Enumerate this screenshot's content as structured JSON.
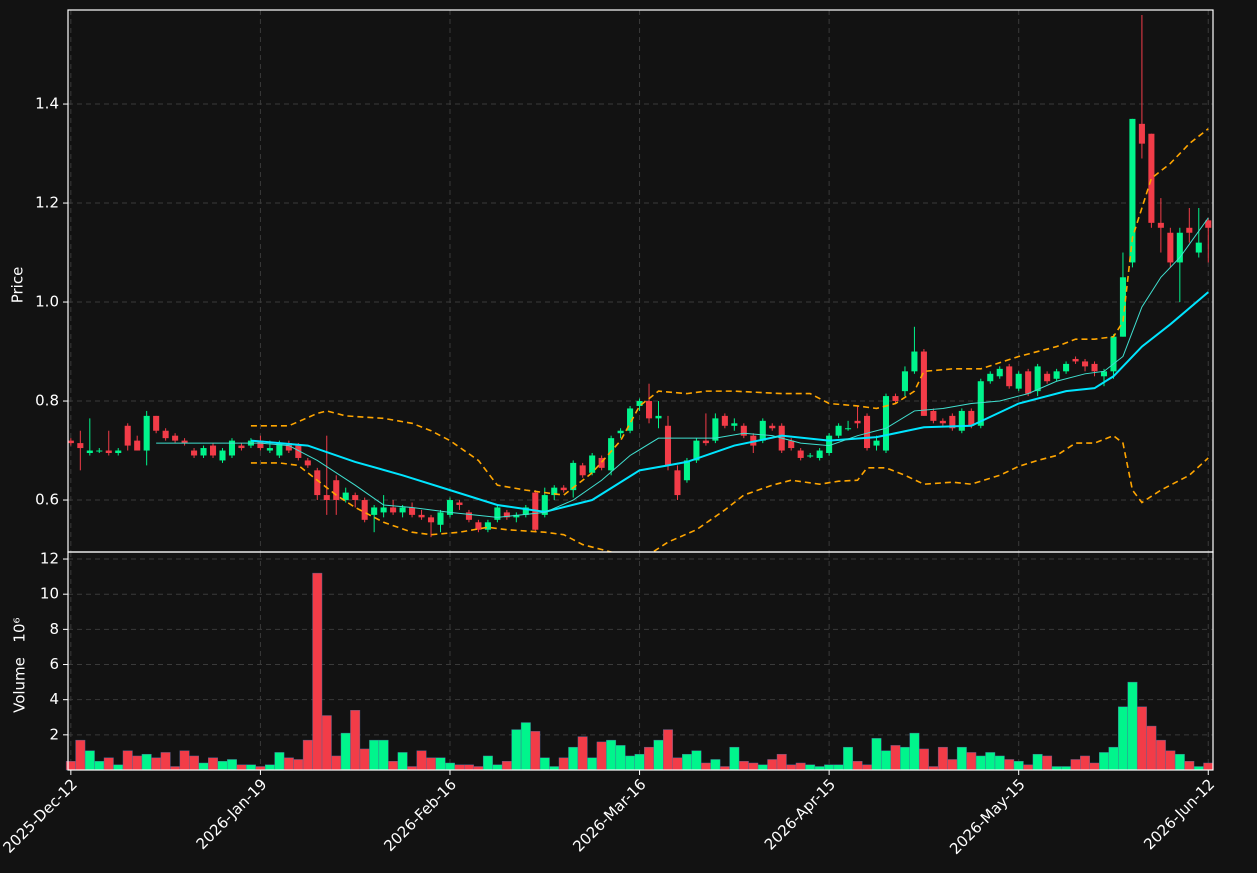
{
  "chart_data": [
    {
      "type": "candlestick",
      "ylabel": "Price",
      "ylim": [
        0.495,
        1.59
      ],
      "yticks": [
        0.6,
        0.8,
        {
          "value": 1,
          "label": "1.0"
        },
        1.2,
        1.4
      ],
      "grid": true,
      "up_color": "#00f58c",
      "down_color": "#f23c48",
      "ohlc": [
        [
          0.72,
          0.725,
          0.71,
          0.715
        ],
        [
          0.715,
          0.74,
          0.66,
          0.705
        ],
        [
          0.695,
          0.765,
          0.69,
          0.7
        ],
        [
          0.7,
          0.705,
          0.695,
          0.7
        ],
        [
          0.7,
          0.74,
          0.69,
          0.695
        ],
        [
          0.695,
          0.705,
          0.69,
          0.7
        ],
        [
          0.75,
          0.755,
          0.7,
          0.71
        ],
        [
          0.72,
          0.73,
          0.7,
          0.7
        ],
        [
          0.7,
          0.78,
          0.67,
          0.77
        ],
        [
          0.77,
          0.77,
          0.735,
          0.74
        ],
        [
          0.74,
          0.745,
          0.72,
          0.725
        ],
        [
          0.73,
          0.735,
          0.715,
          0.72
        ],
        [
          0.72,
          0.725,
          0.71,
          0.715
        ],
        [
          0.7,
          0.705,
          0.685,
          0.69
        ],
        [
          0.69,
          0.71,
          0.685,
          0.705
        ],
        [
          0.71,
          0.715,
          0.685,
          0.69
        ],
        [
          0.68,
          0.705,
          0.675,
          0.7
        ],
        [
          0.69,
          0.725,
          0.685,
          0.72
        ],
        [
          0.71,
          0.715,
          0.7,
          0.705
        ],
        [
          0.71,
          0.725,
          0.705,
          0.72
        ],
        [
          0.72,
          0.73,
          0.7,
          0.705
        ],
        [
          0.7,
          0.72,
          0.695,
          0.705
        ],
        [
          0.69,
          0.72,
          0.685,
          0.715
        ],
        [
          0.715,
          0.72,
          0.695,
          0.7
        ],
        [
          0.71,
          0.715,
          0.68,
          0.685
        ],
        [
          0.68,
          0.685,
          0.665,
          0.67
        ],
        [
          0.66,
          0.665,
          0.6,
          0.61
        ],
        [
          0.61,
          0.73,
          0.57,
          0.6
        ],
        [
          0.64,
          0.65,
          0.57,
          0.6
        ],
        [
          0.6,
          0.625,
          0.595,
          0.615
        ],
        [
          0.61,
          0.615,
          0.585,
          0.6
        ],
        [
          0.6,
          0.605,
          0.555,
          0.56
        ],
        [
          0.57,
          0.59,
          0.535,
          0.585
        ],
        [
          0.575,
          0.61,
          0.565,
          0.585
        ],
        [
          0.585,
          0.6,
          0.57,
          0.575
        ],
        [
          0.575,
          0.59,
          0.565,
          0.585
        ],
        [
          0.585,
          0.595,
          0.565,
          0.57
        ],
        [
          0.57,
          0.58,
          0.56,
          0.565
        ],
        [
          0.565,
          0.57,
          0.525,
          0.555
        ],
        [
          0.55,
          0.58,
          0.535,
          0.575
        ],
        [
          0.57,
          0.605,
          0.565,
          0.6
        ],
        [
          0.595,
          0.6,
          0.58,
          0.59
        ],
        [
          0.575,
          0.58,
          0.555,
          0.56
        ],
        [
          0.555,
          0.56,
          0.535,
          0.54
        ],
        [
          0.54,
          0.56,
          0.535,
          0.555
        ],
        [
          0.56,
          0.59,
          0.555,
          0.585
        ],
        [
          0.575,
          0.58,
          0.56,
          0.565
        ],
        [
          0.565,
          0.575,
          0.555,
          0.57
        ],
        [
          0.57,
          0.59,
          0.565,
          0.585
        ],
        [
          0.615,
          0.62,
          0.535,
          0.54
        ],
        [
          0.57,
          0.625,
          0.565,
          0.61
        ],
        [
          0.61,
          0.63,
          0.6,
          0.625
        ],
        [
          0.625,
          0.63,
          0.615,
          0.62
        ],
        [
          0.62,
          0.68,
          0.605,
          0.675
        ],
        [
          0.67,
          0.675,
          0.645,
          0.65
        ],
        [
          0.655,
          0.695,
          0.65,
          0.69
        ],
        [
          0.685,
          0.69,
          0.66,
          0.665
        ],
        [
          0.66,
          0.73,
          0.65,
          0.725
        ],
        [
          0.735,
          0.745,
          0.725,
          0.74
        ],
        [
          0.74,
          0.79,
          0.735,
          0.785
        ],
        [
          0.79,
          0.805,
          0.78,
          0.8
        ],
        [
          0.8,
          0.835,
          0.755,
          0.765
        ],
        [
          0.765,
          0.8,
          0.745,
          0.77
        ],
        [
          0.75,
          0.77,
          0.66,
          0.67
        ],
        [
          0.66,
          0.67,
          0.6,
          0.61
        ],
        [
          0.64,
          0.685,
          0.635,
          0.68
        ],
        [
          0.68,
          0.725,
          0.675,
          0.72
        ],
        [
          0.72,
          0.775,
          0.71,
          0.715
        ],
        [
          0.72,
          0.775,
          0.715,
          0.765
        ],
        [
          0.77,
          0.775,
          0.745,
          0.75
        ],
        [
          0.75,
          0.765,
          0.74,
          0.755
        ],
        [
          0.75,
          0.755,
          0.725,
          0.73
        ],
        [
          0.73,
          0.735,
          0.695,
          0.71
        ],
        [
          0.72,
          0.765,
          0.715,
          0.76
        ],
        [
          0.75,
          0.755,
          0.74,
          0.745
        ],
        [
          0.75,
          0.755,
          0.695,
          0.7
        ],
        [
          0.72,
          0.725,
          0.7,
          0.705
        ],
        [
          0.7,
          0.705,
          0.68,
          0.685
        ],
        [
          0.69,
          0.695,
          0.685,
          0.69
        ],
        [
          0.685,
          0.705,
          0.68,
          0.7
        ],
        [
          0.695,
          0.735,
          0.69,
          0.73
        ],
        [
          0.73,
          0.755,
          0.725,
          0.75
        ],
        [
          0.745,
          0.76,
          0.74,
          0.745
        ],
        [
          0.76,
          0.79,
          0.745,
          0.755
        ],
        [
          0.77,
          0.775,
          0.7,
          0.705
        ],
        [
          0.71,
          0.73,
          0.7,
          0.72
        ],
        [
          0.7,
          0.815,
          0.695,
          0.81
        ],
        [
          0.81,
          0.815,
          0.795,
          0.8
        ],
        [
          0.82,
          0.87,
          0.81,
          0.86
        ],
        [
          0.86,
          0.95,
          0.855,
          0.9
        ],
        [
          0.9,
          0.905,
          0.77,
          0.77
        ],
        [
          0.78,
          0.785,
          0.755,
          0.76
        ],
        [
          0.76,
          0.765,
          0.75,
          0.755
        ],
        [
          0.77,
          0.775,
          0.74,
          0.745
        ],
        [
          0.74,
          0.785,
          0.735,
          0.78
        ],
        [
          0.78,
          0.785,
          0.745,
          0.75
        ],
        [
          0.75,
          0.845,
          0.745,
          0.84
        ],
        [
          0.84,
          0.86,
          0.835,
          0.855
        ],
        [
          0.85,
          0.87,
          0.845,
          0.865
        ],
        [
          0.87,
          0.875,
          0.825,
          0.83
        ],
        [
          0.825,
          0.86,
          0.82,
          0.855
        ],
        [
          0.86,
          0.865,
          0.81,
          0.815
        ],
        [
          0.82,
          0.875,
          0.81,
          0.87
        ],
        [
          0.855,
          0.86,
          0.835,
          0.84
        ],
        [
          0.845,
          0.865,
          0.84,
          0.86
        ],
        [
          0.86,
          0.88,
          0.855,
          0.875
        ],
        [
          0.885,
          0.89,
          0.875,
          0.88
        ],
        [
          0.88,
          0.885,
          0.86,
          0.87
        ],
        [
          0.875,
          0.88,
          0.85,
          0.86
        ],
        [
          0.85,
          0.865,
          0.83,
          0.86
        ],
        [
          0.86,
          0.935,
          0.845,
          0.93
        ],
        [
          0.93,
          1.1,
          0.93,
          1.05
        ],
        [
          1.08,
          1.37,
          1.07,
          1.37
        ],
        [
          1.36,
          1.58,
          1.29,
          1.32
        ],
        [
          1.34,
          1.34,
          1.15,
          1.16
        ],
        [
          1.16,
          1.21,
          1.1,
          1.15
        ],
        [
          1.14,
          1.15,
          1.07,
          1.08
        ],
        [
          1.08,
          1.15,
          1,
          1.14
        ],
        [
          1.15,
          1.19,
          1.12,
          1.14
        ],
        [
          1.1,
          1.19,
          1.09,
          1.12
        ],
        [
          1.165,
          1.17,
          1.08,
          1.15
        ]
      ],
      "lines": [
        {
          "color": "#00e5ff",
          "width": 2,
          "dashed": false,
          "x": [
            19,
            25,
            30,
            35,
            40,
            45,
            50,
            55,
            60,
            63,
            65,
            70,
            75,
            80,
            85,
            90,
            95,
            100,
            105,
            108,
            110,
            113,
            116,
            120
          ],
          "values": [
            0.72,
            0.71,
            0.677,
            0.65,
            0.62,
            0.59,
            0.576,
            0.6,
            0.66,
            0.67,
            0.677,
            0.71,
            0.73,
            0.72,
            0.727,
            0.747,
            0.75,
            0.795,
            0.82,
            0.826,
            0.85,
            0.91,
            0.955,
            1.02
          ]
        },
        {
          "color": "#40e0d0",
          "width": 1,
          "dashed": false,
          "x": [
            9,
            15,
            20,
            23,
            26,
            30,
            33,
            36,
            40,
            45,
            50,
            53,
            56,
            59,
            62,
            65,
            68,
            71,
            74,
            77,
            80,
            83,
            86,
            89,
            92,
            95,
            98,
            101,
            104,
            107,
            109,
            111,
            113,
            115,
            117,
            120
          ],
          "values": [
            0.715,
            0.715,
            0.715,
            0.71,
            0.68,
            0.63,
            0.59,
            0.585,
            0.575,
            0.565,
            0.575,
            0.6,
            0.64,
            0.69,
            0.725,
            0.725,
            0.725,
            0.735,
            0.73,
            0.715,
            0.71,
            0.73,
            0.745,
            0.78,
            0.785,
            0.795,
            0.8,
            0.815,
            0.84,
            0.855,
            0.86,
            0.89,
            0.99,
            1.05,
            1.09,
            1.17
          ]
        },
        {
          "color": "#ffa500",
          "width": 1.6,
          "dashed": true,
          "x": [
            19,
            23,
            26,
            27,
            29,
            33,
            36,
            38,
            40,
            43,
            45,
            48,
            52,
            55,
            58,
            60,
            62,
            65,
            67,
            70,
            75,
            78,
            80,
            83,
            85,
            87,
            89,
            90,
            93,
            96,
            100,
            104,
            106,
            108,
            110,
            111,
            112,
            114,
            116,
            118,
            120
          ],
          "values": [
            0.75,
            0.75,
            0.775,
            0.78,
            0.77,
            0.765,
            0.755,
            0.74,
            0.72,
            0.68,
            0.63,
            0.62,
            0.61,
            0.655,
            0.72,
            0.79,
            0.82,
            0.815,
            0.82,
            0.82,
            0.815,
            0.815,
            0.795,
            0.79,
            0.785,
            0.795,
            0.82,
            0.86,
            0.865,
            0.865,
            0.89,
            0.91,
            0.925,
            0.925,
            0.93,
            0.96,
            1.13,
            1.25,
            1.28,
            1.32,
            1.35
          ]
        },
        {
          "color": "#ffa500",
          "width": 1.6,
          "dashed": true,
          "x": [
            19,
            22,
            24,
            26,
            28,
            30,
            33,
            36,
            38,
            41,
            44,
            46,
            50,
            52,
            54,
            56,
            58,
            60,
            61,
            63,
            66,
            69,
            71,
            74,
            76,
            79,
            81,
            83,
            84,
            86,
            88,
            90,
            93,
            95,
            98,
            100,
            102,
            104,
            106,
            108,
            110,
            111,
            112,
            113,
            115,
            118,
            120
          ],
          "values": [
            0.675,
            0.675,
            0.67,
            0.64,
            0.61,
            0.585,
            0.555,
            0.535,
            0.53,
            0.535,
            0.545,
            0.54,
            0.535,
            0.53,
            0.51,
            0.5,
            0.49,
            0.48,
            0.49,
            0.515,
            0.54,
            0.58,
            0.61,
            0.63,
            0.64,
            0.632,
            0.638,
            0.64,
            0.665,
            0.665,
            0.65,
            0.632,
            0.636,
            0.632,
            0.65,
            0.668,
            0.68,
            0.69,
            0.715,
            0.715,
            0.73,
            0.715,
            0.62,
            0.595,
            0.62,
            0.65,
            0.685
          ]
        }
      ]
    },
    {
      "type": "bar",
      "ylabel": "Volume",
      "scale_label": "10⁶",
      "ylim": [
        0,
        12.4
      ],
      "yticks": [
        2,
        4,
        6,
        8,
        10,
        12
      ],
      "grid": true,
      "xlim": [
        -0.3,
        120.5
      ],
      "xticks": [
        {
          "value": 0,
          "label": "2025-Dec-12"
        },
        {
          "value": 20,
          "label": "2026-Jan-19"
        },
        {
          "value": 40,
          "label": "2026-Feb-16"
        },
        {
          "value": 60,
          "label": "2026-Mar-16"
        },
        {
          "value": 80,
          "label": "2026-Apr-15"
        },
        {
          "value": 100,
          "label": "2026-May-15"
        },
        {
          "value": 120,
          "label": "2026-Jun-12"
        }
      ],
      "values": [
        0.5,
        1.7,
        1.1,
        0.5,
        0.7,
        0.3,
        1.1,
        0.8,
        0.9,
        0.7,
        1.0,
        0.2,
        1.1,
        0.8,
        0.4,
        0.7,
        0.5,
        0.6,
        0.3,
        0.3,
        0.2,
        0.3,
        1.0,
        0.7,
        0.6,
        1.7,
        11.2,
        3.1,
        0.8,
        2.1,
        3.4,
        1.2,
        1.7,
        1.7,
        0.5,
        1.0,
        0.2,
        1.1,
        0.7,
        0.7,
        0.4,
        0.3,
        0.3,
        0.2,
        0.8,
        0.3,
        0.5,
        2.3,
        2.7,
        2.2,
        0.7,
        0.2,
        0.7,
        1.3,
        1.9,
        0.7,
        1.6,
        1.7,
        1.4,
        0.8,
        0.9,
        1.3,
        1.7,
        2.3,
        0.7,
        0.9,
        1.1,
        0.4,
        0.6,
        0.2,
        1.3,
        0.5,
        0.4,
        0.3,
        0.6,
        0.9,
        0.3,
        0.4,
        0.3,
        0.2,
        0.3,
        0.3,
        1.3,
        0.5,
        0.3,
        1.8,
        1.1,
        1.4,
        1.3,
        2.1,
        1.2,
        0.2,
        1.3,
        0.6,
        1.3,
        1.0,
        0.8,
        1.0,
        0.8,
        0.6,
        0.5,
        0.3,
        0.9,
        0.8,
        0.2,
        0.2,
        0.6,
        0.8,
        0.4,
        1.0,
        1.3,
        3.6,
        5.0,
        3.6,
        2.5,
        1.7,
        1.1,
        0.9,
        0.5,
        0.2,
        0.4
      ]
    }
  ]
}
